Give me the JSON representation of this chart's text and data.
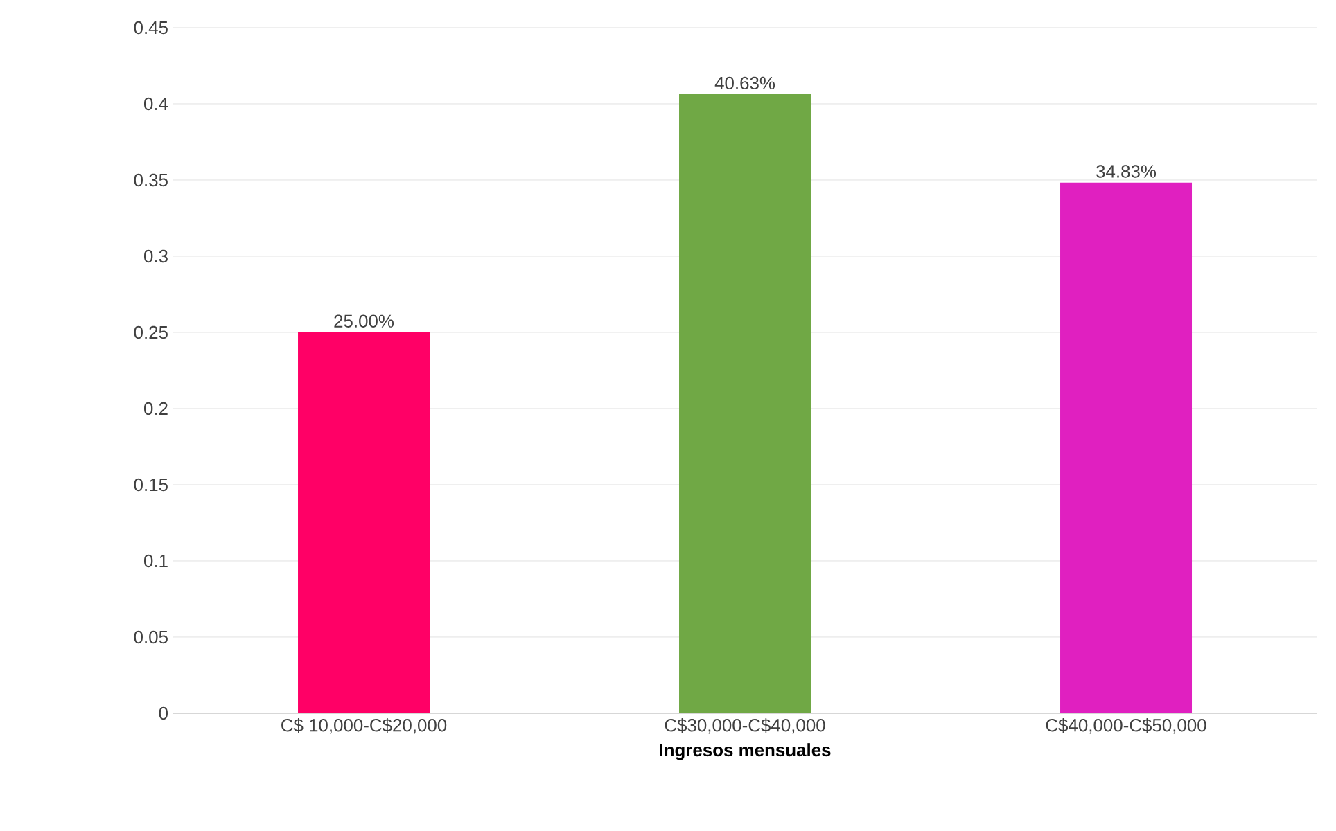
{
  "chart_data": {
    "type": "bar",
    "xlabel": "Ingresos mensuales",
    "categories": [
      "C$ 10,000-C$20,000",
      "C$30,000-C$40,000",
      "C$40,000-C$50,000"
    ],
    "values": [
      0.25,
      0.4063,
      0.3483
    ],
    "value_labels": [
      "25.00%",
      "40.63%",
      "34.83%"
    ],
    "colors": [
      "#ff0066",
      "#70a845",
      "#e020c0"
    ],
    "ylim": [
      0,
      0.45
    ],
    "yticks": [
      0,
      0.05,
      0.1,
      0.15,
      0.2,
      0.25,
      0.3,
      0.35,
      0.4,
      0.45
    ],
    "grid": "y"
  }
}
